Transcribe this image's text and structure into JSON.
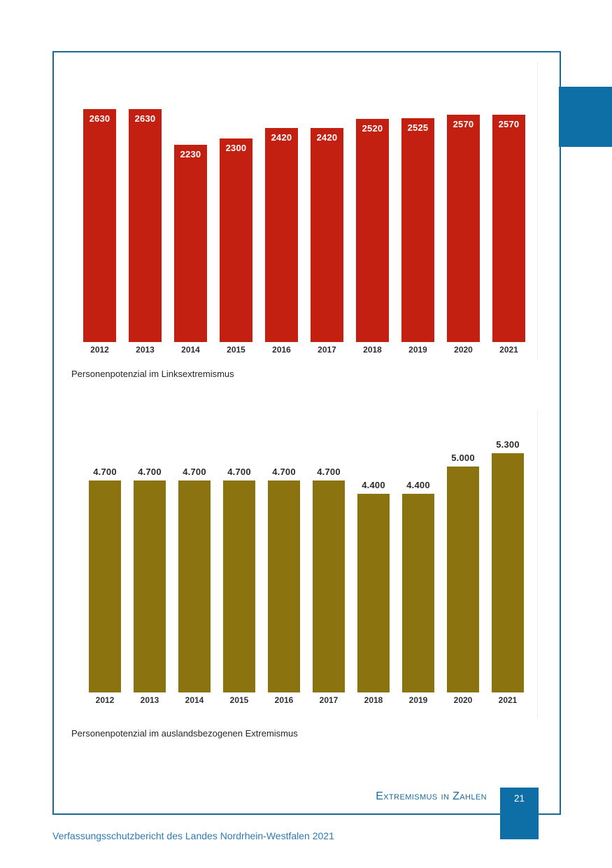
{
  "page": {
    "footer_section_label": "Extremismus in Zahlen",
    "page_number": "21",
    "bottom_text": "Verfassungsschutzbericht des Landes Nordrhein-Westfalen 2021"
  },
  "colors": {
    "page_border": "#1a6b90",
    "accent_blue": "#0e6fa6",
    "footer_text_blue": "#19699b",
    "bottom_text_blue": "#2e7ab5",
    "red_bar": "#c42012",
    "olive_bar": "#8b740f"
  },
  "chart_data": [
    {
      "type": "bar",
      "title": "Personenpotenzial im Linksextremismus",
      "categories": [
        "2012",
        "2013",
        "2014",
        "2015",
        "2016",
        "2017",
        "2018",
        "2019",
        "2020",
        "2021"
      ],
      "values": [
        2630,
        2630,
        2230,
        2300,
        2420,
        2420,
        2520,
        2525,
        2570,
        2570
      ],
      "labels": [
        "2630",
        "2630",
        "2230",
        "2300",
        "2420",
        "2420",
        "2520",
        "2525",
        "2570",
        "2570"
      ],
      "bar_color": "#c42012",
      "label_position": "inside",
      "label_color": "#ffffff",
      "xlabel": "",
      "ylabel": "",
      "ylim": [
        0,
        2630
      ],
      "grid": false,
      "legend": "none"
    },
    {
      "type": "bar",
      "title": "Personenpotenzial im auslandsbezogenen Extremismus",
      "categories": [
        "2012",
        "2013",
        "2014",
        "2015",
        "2016",
        "2017",
        "2018",
        "2019",
        "2020",
        "2021"
      ],
      "values": [
        4700,
        4700,
        4700,
        4700,
        4700,
        4700,
        4400,
        4400,
        5000,
        5300
      ],
      "labels": [
        "4.700",
        "4.700",
        "4.700",
        "4.700",
        "4.700",
        "4.700",
        "4.400",
        "4.400",
        "5.000",
        "5.300"
      ],
      "bar_color": "#8b740f",
      "label_position": "above",
      "label_color": "#2b2b2b",
      "xlabel": "",
      "ylabel": "",
      "ylim": [
        0,
        5300
      ],
      "grid": false,
      "legend": "none"
    }
  ]
}
